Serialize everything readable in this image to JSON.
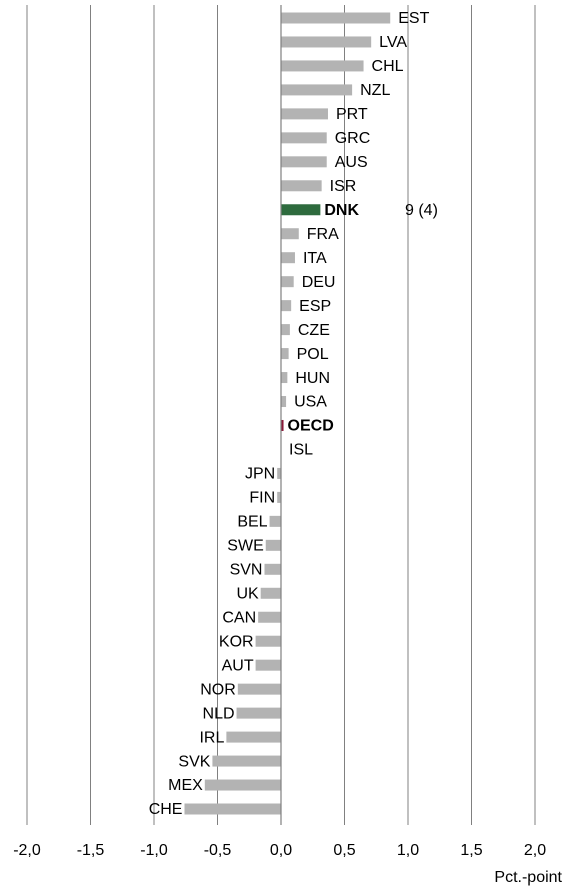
{
  "chart_data": {
    "type": "bar",
    "orientation": "horizontal",
    "categories": [
      "EST",
      "LVA",
      "CHL",
      "NZL",
      "PRT",
      "GRC",
      "AUS",
      "ISR",
      "DNK",
      "FRA",
      "ITA",
      "DEU",
      "ESP",
      "CZE",
      "POL",
      "HUN",
      "USA",
      "OECD",
      "ISL",
      "JPN",
      "FIN",
      "BEL",
      "SWE",
      "SVN",
      "UK",
      "CAN",
      "KOR",
      "AUT",
      "NOR",
      "NLD",
      "IRL",
      "SVK",
      "MEX",
      "CHE"
    ],
    "values": [
      0.86,
      0.71,
      0.65,
      0.56,
      0.37,
      0.36,
      0.36,
      0.32,
      0.31,
      0.14,
      0.11,
      0.1,
      0.08,
      0.07,
      0.06,
      0.05,
      0.04,
      0.02,
      0.0,
      -0.03,
      -0.03,
      -0.09,
      -0.12,
      -0.13,
      -0.16,
      -0.18,
      -0.2,
      -0.2,
      -0.34,
      -0.35,
      -0.43,
      -0.54,
      -0.6,
      -0.76
    ],
    "color": "#b3b3b3",
    "colors": [
      "#b3b3b3",
      "#b3b3b3",
      "#b3b3b3",
      "#b3b3b3",
      "#b3b3b3",
      "#b3b3b3",
      "#b3b3b3",
      "#b3b3b3",
      "#2e6b3e",
      "#b3b3b3",
      "#b3b3b3",
      "#b3b3b3",
      "#b3b3b3",
      "#b3b3b3",
      "#b3b3b3",
      "#b3b3b3",
      "#b3b3b3",
      "#8b1a3a",
      "#b3b3b3",
      "#b3b3b3",
      "#b3b3b3",
      "#b3b3b3",
      "#b3b3b3",
      "#b3b3b3",
      "#b3b3b3",
      "#b3b3b3",
      "#b3b3b3",
      "#b3b3b3",
      "#b3b3b3",
      "#b3b3b3",
      "#b3b3b3",
      "#b3b3b3",
      "#b3b3b3",
      "#b3b3b3"
    ],
    "annotation": "9 (4)",
    "x_label": "Pct.-point",
    "xlim": [
      -2.0,
      2.0
    ],
    "xticks": [
      {
        "value": -2.0,
        "label": "-2,0"
      },
      {
        "value": -1.5,
        "label": "-1,5"
      },
      {
        "value": -1.0,
        "label": "-1,0"
      },
      {
        "value": -0.5,
        "label": "-0,5"
      },
      {
        "value": 0.0,
        "label": "0,0"
      },
      {
        "value": 0.5,
        "label": "0,5"
      },
      {
        "value": 1.0,
        "label": "1,0"
      },
      {
        "value": 1.5,
        "label": "1,5"
      },
      {
        "value": 2.0,
        "label": "2,0"
      }
    ],
    "grid": true
  }
}
